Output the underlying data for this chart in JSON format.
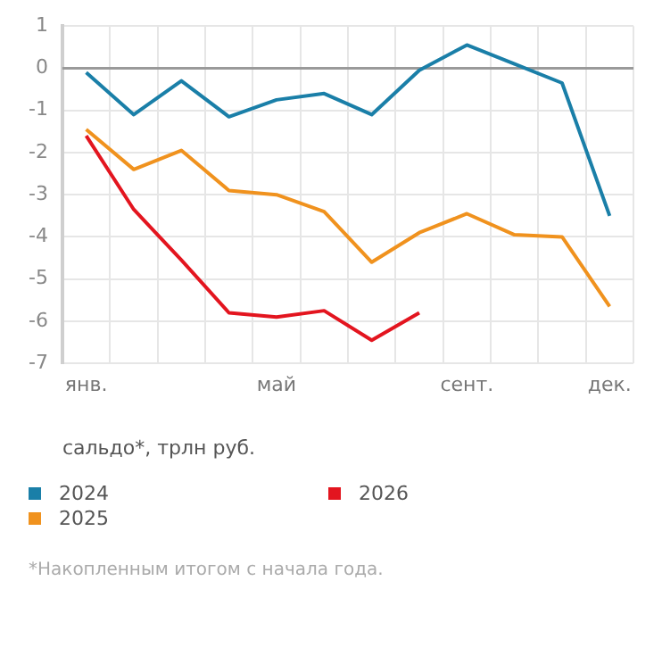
{
  "chart_data": {
    "type": "line",
    "xlabel": "сальдо*, трлн руб.",
    "annotations": [
      "*Накопленным итогом с начала года."
    ],
    "categories": [
      "янв.",
      null,
      null,
      null,
      "май",
      null,
      null,
      null,
      "сент.",
      null,
      null,
      "дек."
    ],
    "series": [
      {
        "name": "2024",
        "color": "#1a7fa8",
        "values": [
          -0.1,
          -1.1,
          -0.3,
          -1.15,
          -0.75,
          -0.6,
          -1.1,
          -0.05,
          0.55,
          0.1,
          -0.35,
          -3.5
        ]
      },
      {
        "name": "2025",
        "color": "#f0921e",
        "values": [
          -1.45,
          -2.4,
          -1.95,
          -2.9,
          -3.0,
          -3.4,
          -4.6,
          -3.9,
          -3.45,
          -3.95,
          -4.0,
          -5.65
        ]
      },
      {
        "name": "2026",
        "color": "#e3151f",
        "values": [
          -1.6,
          -3.35,
          -4.55,
          -5.8,
          -5.9,
          -5.75,
          -6.45,
          -5.8,
          null,
          null,
          null,
          null
        ]
      }
    ],
    "ylim": [
      -7,
      1
    ],
    "yticks": [
      1,
      0,
      -1,
      -2,
      -3,
      -4,
      -5,
      -6,
      -7
    ],
    "ref_lines": [
      {
        "axis": "y",
        "value": 0,
        "color": "#9a9a9a"
      }
    ],
    "grid": true,
    "legend": "bottom",
    "marker": "none",
    "line_style": "solid"
  }
}
